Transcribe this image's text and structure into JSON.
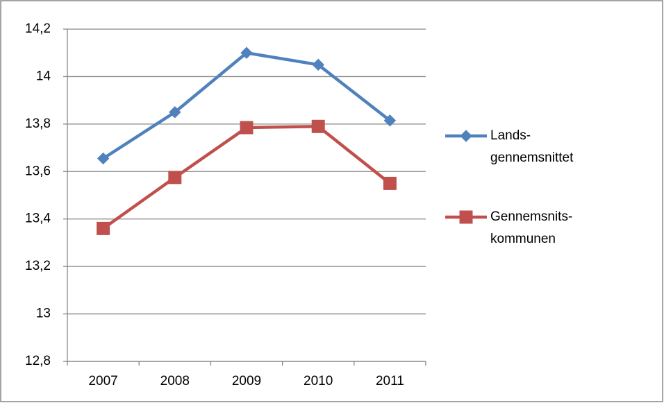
{
  "chart_data": {
    "type": "line",
    "categories": [
      "2007",
      "2008",
      "2009",
      "2010",
      "2011"
    ],
    "series": [
      {
        "name": "Lands-gennemsnittet",
        "color": "#4f81bd",
        "marker": "diamond",
        "values": [
          13.655,
          13.85,
          14.1,
          14.05,
          13.815
        ]
      },
      {
        "name": "Gennemsnits-kommunen",
        "color": "#c0504d",
        "marker": "square",
        "values": [
          13.36,
          13.575,
          13.785,
          13.79,
          13.55
        ]
      }
    ],
    "ylim": [
      12.8,
      14.2
    ],
    "yticks": [
      {
        "value": 12.8,
        "label": "12,8"
      },
      13,
      {
        "value": 13.2,
        "label": "13,2"
      },
      {
        "value": 13.4,
        "label": "13,4"
      },
      {
        "value": 13.6,
        "label": "13,6"
      },
      {
        "value": 13.8,
        "label": "13,8"
      },
      14,
      {
        "value": 14.2,
        "label": "14,2"
      }
    ],
    "grid": true,
    "legend": "right"
  }
}
